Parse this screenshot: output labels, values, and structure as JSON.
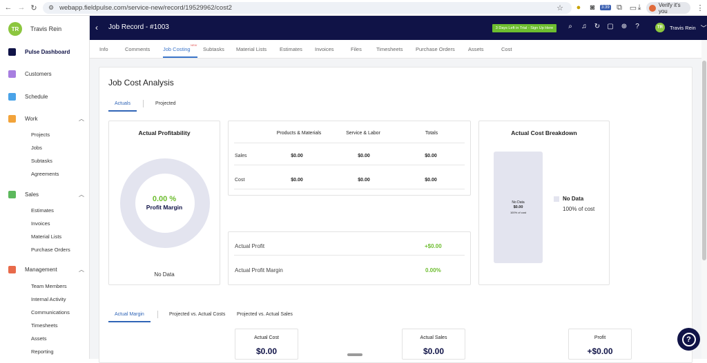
{
  "browser": {
    "url": "webapp.fieldpulse.com/service-new/record/19529962/cost2",
    "verify_label": "Verify it's you",
    "badge": "3:39"
  },
  "sidebar": {
    "user_initials": "TR",
    "user_name": "Travis Rein",
    "dashboard": "Pulse Dashboard",
    "customers": "Customers",
    "schedule": "Schedule",
    "work": {
      "label": "Work",
      "items": [
        "Projects",
        "Jobs",
        "Subtasks",
        "Agreements"
      ]
    },
    "sales": {
      "label": "Sales",
      "items": [
        "Estimates",
        "Invoices",
        "Material Lists",
        "Purchase Orders"
      ]
    },
    "management": {
      "label": "Management",
      "items": [
        "Team Members",
        "Internal Activity",
        "Communications",
        "Timesheets",
        "Assets",
        "Reporting"
      ]
    }
  },
  "topbar": {
    "title": "Job Record - #1003",
    "trial": "3 Days Left in Trial - Sign Up Here",
    "user_initials": "TR",
    "user_name": "Travis Rein"
  },
  "tabs": {
    "items": [
      "Info",
      "Comments",
      "Job Costing",
      "Subtasks",
      "Material Lists",
      "Estimates",
      "Invoices",
      "Files",
      "Timesheets",
      "Purchase Orders",
      "Assets",
      "Cost"
    ],
    "new_tag": "NEW",
    "active": "Job Costing"
  },
  "page": {
    "title": "Job Cost Analysis",
    "view_tabs": [
      "Actuals",
      "Projected"
    ],
    "profitability": {
      "title": "Actual Profitability",
      "percent": "0.00 %",
      "label": "Profit Margin",
      "no_data": "No Data"
    },
    "table": {
      "headers": [
        "Products & Materials",
        "Service & Labor",
        "Totals"
      ],
      "rows": [
        {
          "label": "Sales",
          "values": [
            "$0.00",
            "$0.00",
            "$0.00"
          ]
        },
        {
          "label": "Cost",
          "values": [
            "$0.00",
            "$0.00",
            "$0.00"
          ]
        }
      ]
    },
    "profit": {
      "profit_label": "Actual Profit",
      "profit_value": "+$0.00",
      "margin_label": "Actual Profit Margin",
      "margin_value": "0.00%"
    },
    "breakdown": {
      "title": "Actual Cost Breakdown",
      "bar_label": "No Data",
      "bar_value": "$0.00",
      "bar_pct": "100% of cost",
      "legend_label": "No Data",
      "legend_pct": "100% of cost"
    },
    "margin_tabs": [
      "Actual Margin",
      "Projected vs. Actual Costs",
      "Projected vs. Actual Sales"
    ],
    "metrics": [
      {
        "label": "Actual Cost",
        "value": "$0.00"
      },
      {
        "label": "Actual Sales",
        "value": "$0.00"
      },
      {
        "label": "Profit",
        "value": "+$0.00"
      }
    ]
  },
  "colors": {
    "navy": "#101347",
    "green": "#6dbd2f",
    "blue": "#2f64b6"
  }
}
